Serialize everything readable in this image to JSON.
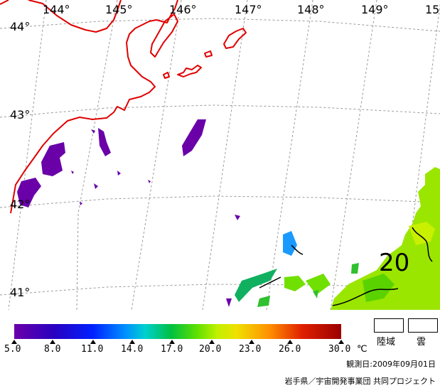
{
  "map": {
    "longitude_labels": [
      "144°",
      "145°",
      "146°",
      "147°",
      "148°",
      "149°",
      "15"
    ],
    "latitude_labels": [
      "44°",
      "43°",
      "42°",
      "41°"
    ],
    "contour_label": "20"
  },
  "colorbar": {
    "ticks": [
      "5.0",
      "8.0",
      "11.0",
      "14.0",
      "17.0",
      "20.0",
      "23.0",
      "26.0",
      "30.0"
    ],
    "unit": "℃",
    "colors": [
      "#6a00a8",
      "#0020ff",
      "#00c040",
      "#c0f000",
      "#ff9000",
      "#9a0000"
    ]
  },
  "legend": {
    "land": "陸域",
    "cloud": "雲"
  },
  "footer": {
    "observation_date": "観測日:2009年09月01日",
    "credit": "岩手県／宇宙開発事業団 共同プロジェクト"
  }
}
